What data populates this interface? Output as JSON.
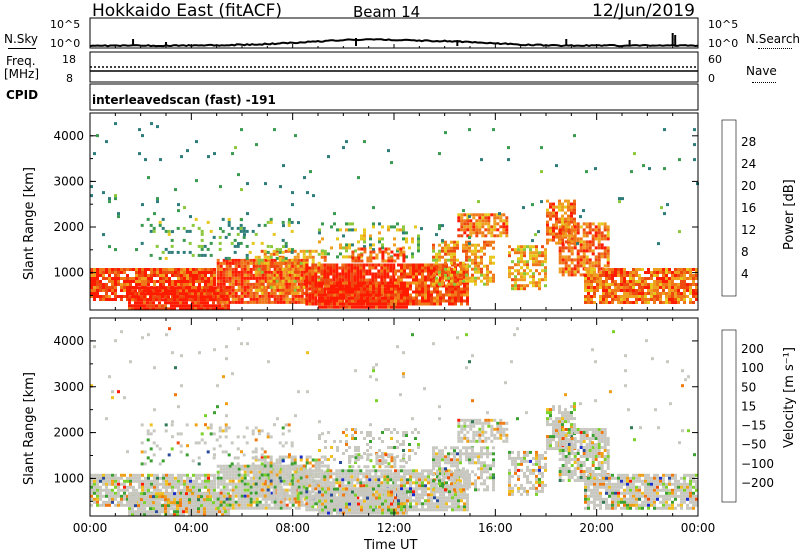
{
  "header": {
    "radar": "Hokkaido East (fitACF)",
    "beam": "Beam 14",
    "date": "12/Jun/2019"
  },
  "top_panels": {
    "nsky_label": "N.Sky",
    "nsearch_label": "N.Search",
    "nsky_ticks": [
      "10^5",
      "10^0"
    ],
    "nsearch_ticks": [
      "10^5",
      "10^0"
    ],
    "freq_label": "Freq.",
    "freq_unit": "[MHz]",
    "freq_ticks": [
      "18",
      "8"
    ],
    "nave_label": "Nave",
    "nave_ticks": [
      "60",
      "0"
    ],
    "cpid_label": "CPID",
    "cpid_value": "interleavedscan (fast) -191"
  },
  "chart_data": [
    {
      "type": "heatmap",
      "name": "power",
      "ylabel": "Slant Range [km]",
      "xlabel": "",
      "x_ticks": [
        "00:00",
        "04:00",
        "08:00",
        "12:00",
        "16:00",
        "20:00",
        "00:00"
      ],
      "xlim_hours": [
        0,
        24
      ],
      "y_ticks": [
        1000,
        2000,
        3000,
        4000
      ],
      "ylim": [
        180,
        4500
      ],
      "colorbar": {
        "label": "Power [dB]",
        "ticks": [
          4,
          8,
          12,
          16,
          20,
          24,
          28
        ],
        "range": [
          0,
          32
        ],
        "colors": [
          "#0018ff",
          "#2050c0",
          "#2e7d7a",
          "#3a9a50",
          "#8cc83c",
          "#e6c81e",
          "#f0a020",
          "#f07818",
          "#ee4a10",
          "#ff1a00"
        ]
      }
    },
    {
      "type": "heatmap",
      "name": "velocity",
      "ylabel": "Slant Range [km]",
      "xlabel": "Time UT",
      "x_ticks": [
        "00:00",
        "04:00",
        "08:00",
        "12:00",
        "16:00",
        "20:00",
        "00:00"
      ],
      "xlim_hours": [
        0,
        24
      ],
      "y_ticks": [
        1000,
        2000,
        3000,
        4000
      ],
      "ylim": [
        180,
        4500
      ],
      "colorbar": {
        "label": "Velocity [m s⁻¹]",
        "ticks": [
          "200",
          "100",
          "50",
          "15",
          "−15",
          "−50",
          "−100",
          "−200"
        ],
        "colors": [
          "#1a2ccc",
          "#2a4a9a",
          "#2e7a55",
          "#3aa030",
          "#7cd22a",
          "#c8c8c0",
          "#f0c020",
          "#f0a018",
          "#f07a10",
          "#f04a08",
          "#ff1a00"
        ]
      }
    }
  ]
}
